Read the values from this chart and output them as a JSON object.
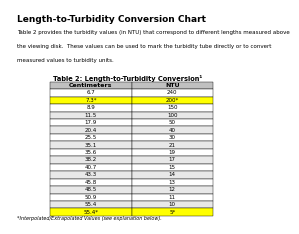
{
  "title": "Length-to-Turbidity Conversion Chart",
  "description": "Table 2 provides the turbidity values (in NTU) that correspond to different lengths measured above\nthe viewing disk.  These values can be used to mark the turbidity tube directly or to convert\nmeasured values to turbidity units.",
  "table_title": "Table 2: Length-to-Turbidity Conversion¹",
  "col_headers": [
    "Centimeters",
    "NTU"
  ],
  "rows": [
    [
      "6.7",
      "240"
    ],
    [
      "7.3*",
      "200*"
    ],
    [
      "8.9",
      "150"
    ],
    [
      "11.5",
      "100"
    ],
    [
      "17.9",
      "50"
    ],
    [
      "20.4",
      "40"
    ],
    [
      "25.5",
      "30"
    ],
    [
      "35.1",
      "21"
    ],
    [
      "35.6",
      "19"
    ],
    [
      "38.2",
      "17"
    ],
    [
      "40.7",
      "15"
    ],
    [
      "43.3",
      "14"
    ],
    [
      "45.8",
      "13"
    ],
    [
      "48.5",
      "12"
    ],
    [
      "50.9",
      "11"
    ],
    [
      "55.4",
      "10"
    ],
    [
      "55.4*",
      "5*"
    ]
  ],
  "highlight_rows": [
    1,
    16
  ],
  "highlight_color": "#FFFF00",
  "footnote": "*Interpolated/Extrapolated Values (see explanation below).",
  "bg_color": "#ffffff",
  "header_bg": "#c0c0c0",
  "row_alt_color": "#e8e8e8"
}
